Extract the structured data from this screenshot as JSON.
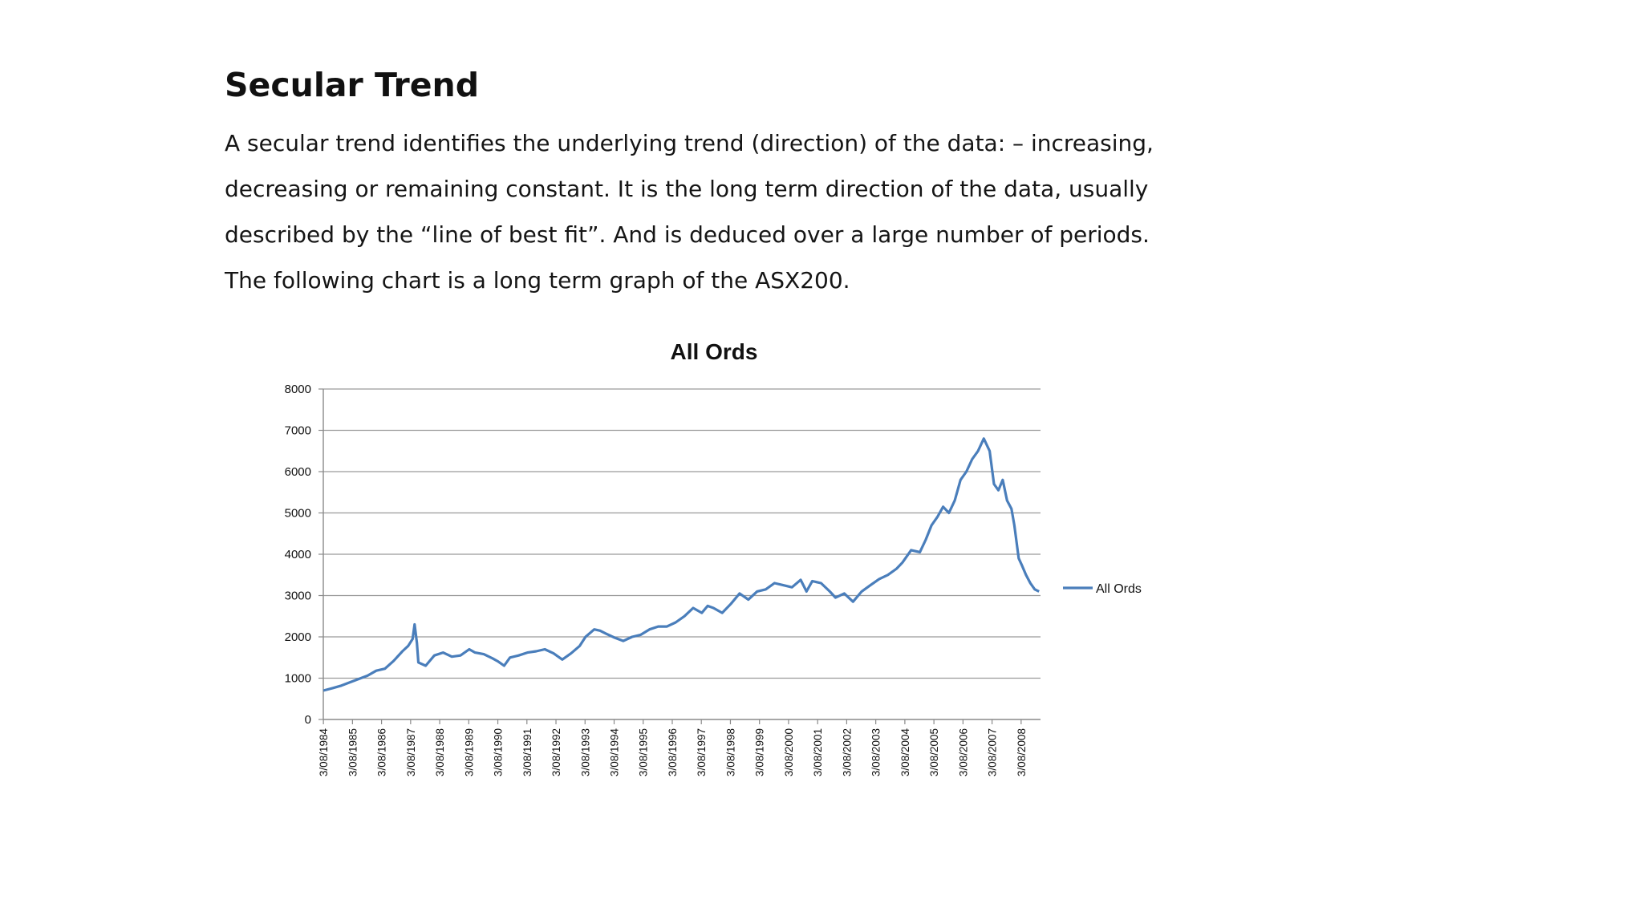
{
  "page": {
    "heading": "Secular Trend",
    "paragraph_lines": [
      "A secular trend identifies the underlying trend (direction) of the data: – increasing,",
      "decreasing or remaining constant. It is the long term direction of the data, usually",
      "described by the “line of best fit”. And is deduced over a large number of periods.",
      "The following chart is a long term graph of the ASX200."
    ]
  },
  "chart_data": {
    "type": "line",
    "title": "All Ords",
    "xlabel": "",
    "ylabel": "",
    "ylim": [
      0,
      8000
    ],
    "yticks": [
      0,
      1000,
      2000,
      3000,
      4000,
      5000,
      6000,
      7000,
      8000
    ],
    "xlim": [
      1984.58,
      2009.25
    ],
    "x_tick_labels": [
      "3/08/1984",
      "3/08/1985",
      "3/08/1986",
      "3/08/1987",
      "3/08/1988",
      "3/08/1989",
      "3/08/1990",
      "3/08/1991",
      "3/08/1992",
      "3/08/1993",
      "3/08/1994",
      "3/08/1995",
      "3/08/1996",
      "3/08/1997",
      "3/08/1998",
      "3/08/1999",
      "3/08/2000",
      "3/08/2001",
      "3/08/2002",
      "3/08/2003",
      "3/08/2004",
      "3/08/2005",
      "3/08/2006",
      "3/08/2007",
      "3/08/2008"
    ],
    "grid": true,
    "legend": "right",
    "color": "#4a7ebb",
    "series": [
      {
        "name": "All Ords",
        "x": [
          1984.58,
          1984.9,
          1985.2,
          1985.5,
          1985.8,
          1986.1,
          1986.4,
          1986.7,
          1987.0,
          1987.3,
          1987.5,
          1987.65,
          1987.72,
          1987.8,
          1987.85,
          1988.1,
          1988.4,
          1988.7,
          1989.0,
          1989.3,
          1989.6,
          1989.8,
          1990.1,
          1990.4,
          1990.6,
          1990.8,
          1991.0,
          1991.3,
          1991.6,
          1991.9,
          1992.2,
          1992.5,
          1992.8,
          1993.1,
          1993.4,
          1993.6,
          1993.9,
          1994.1,
          1994.3,
          1994.6,
          1994.9,
          1995.2,
          1995.5,
          1995.8,
          1996.1,
          1996.4,
          1996.7,
          1997.0,
          1997.3,
          1997.6,
          1997.8,
          1998.0,
          1998.3,
          1998.6,
          1998.9,
          1999.2,
          1999.5,
          1999.8,
          2000.1,
          2000.4,
          2000.7,
          2001.0,
          2001.2,
          2001.4,
          2001.7,
          2002.0,
          2002.2,
          2002.5,
          2002.8,
          2003.1,
          2003.4,
          2003.7,
          2004.0,
          2004.3,
          2004.5,
          2004.8,
          2005.1,
          2005.3,
          2005.5,
          2005.7,
          2005.9,
          2006.1,
          2006.3,
          2006.5,
          2006.7,
          2006.9,
          2007.1,
          2007.3,
          2007.5,
          2007.65,
          2007.8,
          2007.95,
          2008.1,
          2008.25,
          2008.35,
          2008.5,
          2008.6,
          2008.75,
          2008.9,
          2009.05,
          2009.2
        ],
        "y": [
          700,
          760,
          820,
          900,
          980,
          1060,
          1180,
          1230,
          1420,
          1650,
          1780,
          1950,
          2300,
          1850,
          1380,
          1300,
          1550,
          1620,
          1520,
          1550,
          1700,
          1620,
          1580,
          1480,
          1400,
          1300,
          1500,
          1550,
          1620,
          1650,
          1700,
          1600,
          1450,
          1600,
          1780,
          2000,
          2180,
          2150,
          2080,
          1980,
          1900,
          2000,
          2050,
          2180,
          2250,
          2250,
          2350,
          2500,
          2700,
          2580,
          2750,
          2700,
          2580,
          2800,
          3050,
          2900,
          3100,
          3150,
          3300,
          3250,
          3200,
          3380,
          3100,
          3350,
          3300,
          3100,
          2950,
          3050,
          2850,
          3100,
          3250,
          3400,
          3500,
          3650,
          3800,
          4100,
          4050,
          4350,
          4700,
          4900,
          5150,
          5000,
          5300,
          5800,
          6000,
          6300,
          6500,
          6800,
          6500,
          5700,
          5550,
          5800,
          5300,
          5100,
          4700,
          3900,
          3750,
          3500,
          3300,
          3150,
          3100
        ]
      }
    ]
  }
}
